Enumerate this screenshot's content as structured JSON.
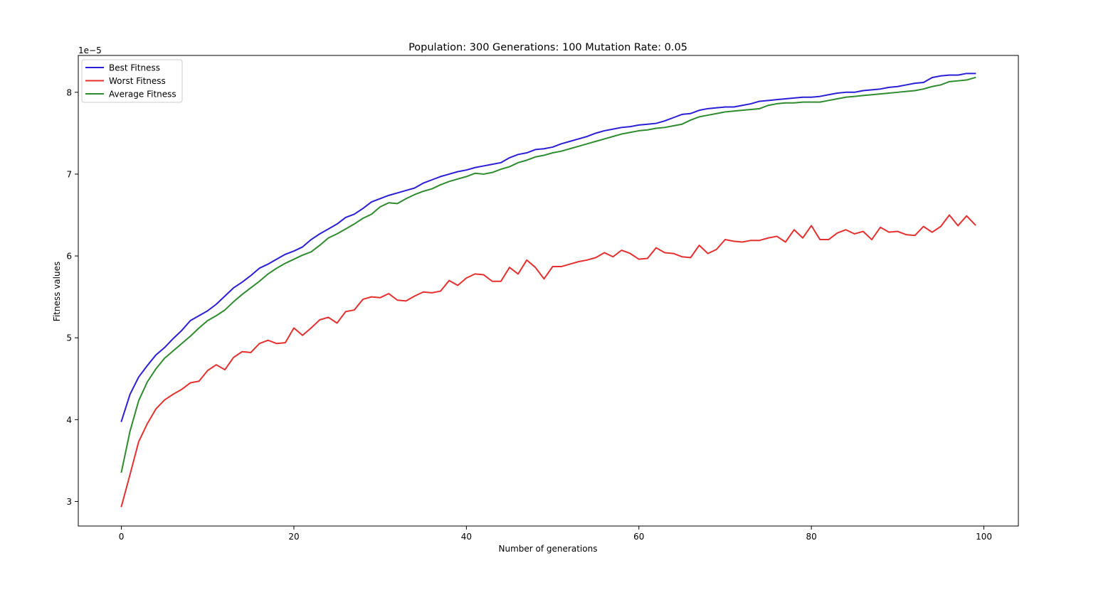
{
  "chart_data": {
    "type": "line",
    "title": "Population: 300 Generations: 100 Mutation Rate: 0.05",
    "xlabel": "Number of generations",
    "ylabel": "Fitness values",
    "y_offset_text": "1e−5",
    "xlim": [
      -5,
      104
    ],
    "ylim": [
      2.7,
      8.45
    ],
    "xticks": [
      0,
      20,
      40,
      60,
      80,
      100
    ],
    "yticks": [
      3,
      4,
      5,
      6,
      7,
      8
    ],
    "grid": false,
    "legend_position": "upper-left",
    "series": [
      {
        "name": "Best Fitness",
        "color": "#2a1fd6",
        "values": [
          3.98,
          4.31,
          4.52,
          4.66,
          4.79,
          4.88,
          4.99,
          5.09,
          5.21,
          5.27,
          5.33,
          5.41,
          5.51,
          5.61,
          5.68,
          5.76,
          5.85,
          5.9,
          5.96,
          6.02,
          6.06,
          6.11,
          6.2,
          6.27,
          6.33,
          6.39,
          6.47,
          6.51,
          6.58,
          6.66,
          6.7,
          6.74,
          6.77,
          6.8,
          6.83,
          6.89,
          6.93,
          6.97,
          7.0,
          7.03,
          7.05,
          7.08,
          7.1,
          7.12,
          7.14,
          7.2,
          7.24,
          7.26,
          7.3,
          7.31,
          7.33,
          7.37,
          7.4,
          7.43,
          7.46,
          7.5,
          7.53,
          7.55,
          7.57,
          7.58,
          7.6,
          7.61,
          7.62,
          7.65,
          7.69,
          7.73,
          7.74,
          7.78,
          7.8,
          7.81,
          7.82,
          7.82,
          7.84,
          7.86,
          7.89,
          7.9,
          7.91,
          7.92,
          7.93,
          7.94,
          7.94,
          7.95,
          7.97,
          7.99,
          8.0,
          8.0,
          8.02,
          8.03,
          8.04,
          8.06,
          8.07,
          8.09,
          8.11,
          8.12,
          8.18,
          8.2,
          8.21,
          8.21,
          8.23,
          8.23
        ]
      },
      {
        "name": "Worst Fitness",
        "color": "#e53030",
        "values": [
          2.94,
          3.33,
          3.73,
          3.95,
          4.13,
          4.24,
          4.31,
          4.37,
          4.45,
          4.47,
          4.6,
          4.67,
          4.61,
          4.76,
          4.83,
          4.82,
          4.93,
          4.97,
          4.93,
          4.94,
          5.12,
          5.03,
          5.12,
          5.22,
          5.25,
          5.18,
          5.32,
          5.34,
          5.47,
          5.5,
          5.49,
          5.54,
          5.46,
          5.45,
          5.51,
          5.56,
          5.55,
          5.57,
          5.7,
          5.64,
          5.73,
          5.78,
          5.77,
          5.69,
          5.69,
          5.86,
          5.78,
          5.95,
          5.86,
          5.72,
          5.87,
          5.87,
          5.9,
          5.93,
          5.95,
          5.98,
          6.04,
          5.99,
          6.07,
          6.03,
          5.96,
          5.97,
          6.1,
          6.04,
          6.03,
          5.99,
          5.98,
          6.13,
          6.03,
          6.08,
          6.2,
          6.18,
          6.17,
          6.19,
          6.19,
          6.22,
          6.24,
          6.17,
          6.32,
          6.22,
          6.37,
          6.2,
          6.2,
          6.28,
          6.32,
          6.27,
          6.3,
          6.2,
          6.35,
          6.29,
          6.3,
          6.26,
          6.25,
          6.36,
          6.29,
          6.36,
          6.5,
          6.37,
          6.49,
          6.38
        ]
      },
      {
        "name": "Average Fitness",
        "color": "#2e8b2e",
        "values": [
          3.36,
          3.86,
          4.23,
          4.46,
          4.62,
          4.75,
          4.84,
          4.93,
          5.02,
          5.12,
          5.21,
          5.27,
          5.34,
          5.44,
          5.53,
          5.61,
          5.69,
          5.78,
          5.85,
          5.91,
          5.96,
          6.01,
          6.05,
          6.13,
          6.22,
          6.27,
          6.33,
          6.39,
          6.46,
          6.51,
          6.6,
          6.65,
          6.64,
          6.7,
          6.75,
          6.79,
          6.82,
          6.87,
          6.91,
          6.94,
          6.97,
          7.01,
          7.0,
          7.02,
          7.06,
          7.09,
          7.14,
          7.17,
          7.21,
          7.23,
          7.26,
          7.28,
          7.31,
          7.34,
          7.37,
          7.4,
          7.43,
          7.46,
          7.49,
          7.51,
          7.53,
          7.54,
          7.56,
          7.57,
          7.59,
          7.61,
          7.66,
          7.7,
          7.72,
          7.74,
          7.76,
          7.77,
          7.78,
          7.79,
          7.8,
          7.84,
          7.86,
          7.87,
          7.87,
          7.88,
          7.88,
          7.88,
          7.9,
          7.92,
          7.94,
          7.95,
          7.96,
          7.97,
          7.98,
          7.99,
          8.0,
          8.01,
          8.02,
          8.04,
          8.07,
          8.09,
          8.13,
          8.14,
          8.15,
          8.18
        ]
      }
    ]
  }
}
